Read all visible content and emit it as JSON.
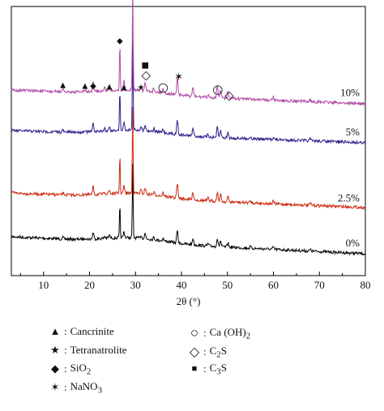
{
  "chart_data": {
    "type": "line",
    "xlabel": "2θ (°)",
    "xlim": [
      3,
      80
    ],
    "xticks": [
      10,
      20,
      30,
      40,
      50,
      60,
      70,
      80
    ],
    "series": [
      {
        "name": "0%",
        "color": "#000000"
      },
      {
        "name": "2.5%",
        "color": "#cc2a10"
      },
      {
        "name": "5%",
        "color": "#2a1f8c"
      },
      {
        "name": "10%",
        "color": "#b04aa6"
      }
    ],
    "peaks": [
      {
        "x": 14.2,
        "h": 2
      },
      {
        "x": 19.0,
        "h": 2
      },
      {
        "x": 20.8,
        "h": 9
      },
      {
        "x": 23.3,
        "h": 3
      },
      {
        "x": 24.3,
        "h": 4
      },
      {
        "x": 26.6,
        "h": 45
      },
      {
        "x": 27.5,
        "h": 8
      },
      {
        "x": 29.4,
        "h": 100
      },
      {
        "x": 31.2,
        "h": 4
      },
      {
        "x": 32.1,
        "h": 7
      },
      {
        "x": 34.0,
        "h": 3
      },
      {
        "x": 36.0,
        "h": 4
      },
      {
        "x": 39.1,
        "h": 17
      },
      {
        "x": 42.5,
        "h": 9
      },
      {
        "x": 45.8,
        "h": 3
      },
      {
        "x": 47.8,
        "h": 11
      },
      {
        "x": 48.5,
        "h": 8
      },
      {
        "x": 50.1,
        "h": 6
      },
      {
        "x": 55.0,
        "h": 2
      },
      {
        "x": 60.0,
        "h": 3
      },
      {
        "x": 68.0,
        "h": 2
      }
    ],
    "markers": [
      {
        "symbol": "▲",
        "x": 14.2,
        "series": "10%"
      },
      {
        "symbol": "▲",
        "x": 19.0,
        "series": "10%"
      },
      {
        "symbol": "◆",
        "x": 20.8,
        "series": "10%"
      },
      {
        "symbol": "▲",
        "x": 24.3,
        "series": "10%"
      },
      {
        "symbol": "◆",
        "x": 26.6,
        "series": "10%",
        "above_peak": true
      },
      {
        "symbol": "▲",
        "x": 27.5,
        "series": "10%"
      },
      {
        "symbol": "✶",
        "x": 29.4,
        "series": "10%",
        "above_peak": true
      },
      {
        "symbol": "★",
        "x": 31.2,
        "series": "10%"
      },
      {
        "symbol": "■",
        "x": 32.1,
        "series": "10%",
        "level": 2
      },
      {
        "symbol": "◇",
        "x": 32.3,
        "series": "10%",
        "level": 1
      },
      {
        "symbol": "○",
        "x": 36.0,
        "series": "10%"
      },
      {
        "symbol": "✶",
        "x": 39.4,
        "series": "10%",
        "level": 1
      },
      {
        "symbol": "○",
        "x": 47.9,
        "series": "10%"
      },
      {
        "symbol": "◇",
        "x": 50.4,
        "series": "10%",
        "level": -0.5
      }
    ]
  },
  "legend": [
    {
      "symbol": "▲",
      "label": "Cancrinite"
    },
    {
      "symbol": "★",
      "label": "Tetranatrolite"
    },
    {
      "symbol": "◆",
      "label": "SiO",
      "sub": "2",
      "after": ""
    },
    {
      "symbol": "✶",
      "label": "NaNO",
      "sub": "3",
      "after": ""
    },
    {
      "symbol": "○",
      "label": "Ca (OH)",
      "sub": "2",
      "after": ""
    },
    {
      "symbol": "◇",
      "label": "C",
      "sub": "2",
      "after": "S"
    },
    {
      "symbol": "■",
      "label": "C",
      "sub": "3",
      "after": "S"
    }
  ]
}
